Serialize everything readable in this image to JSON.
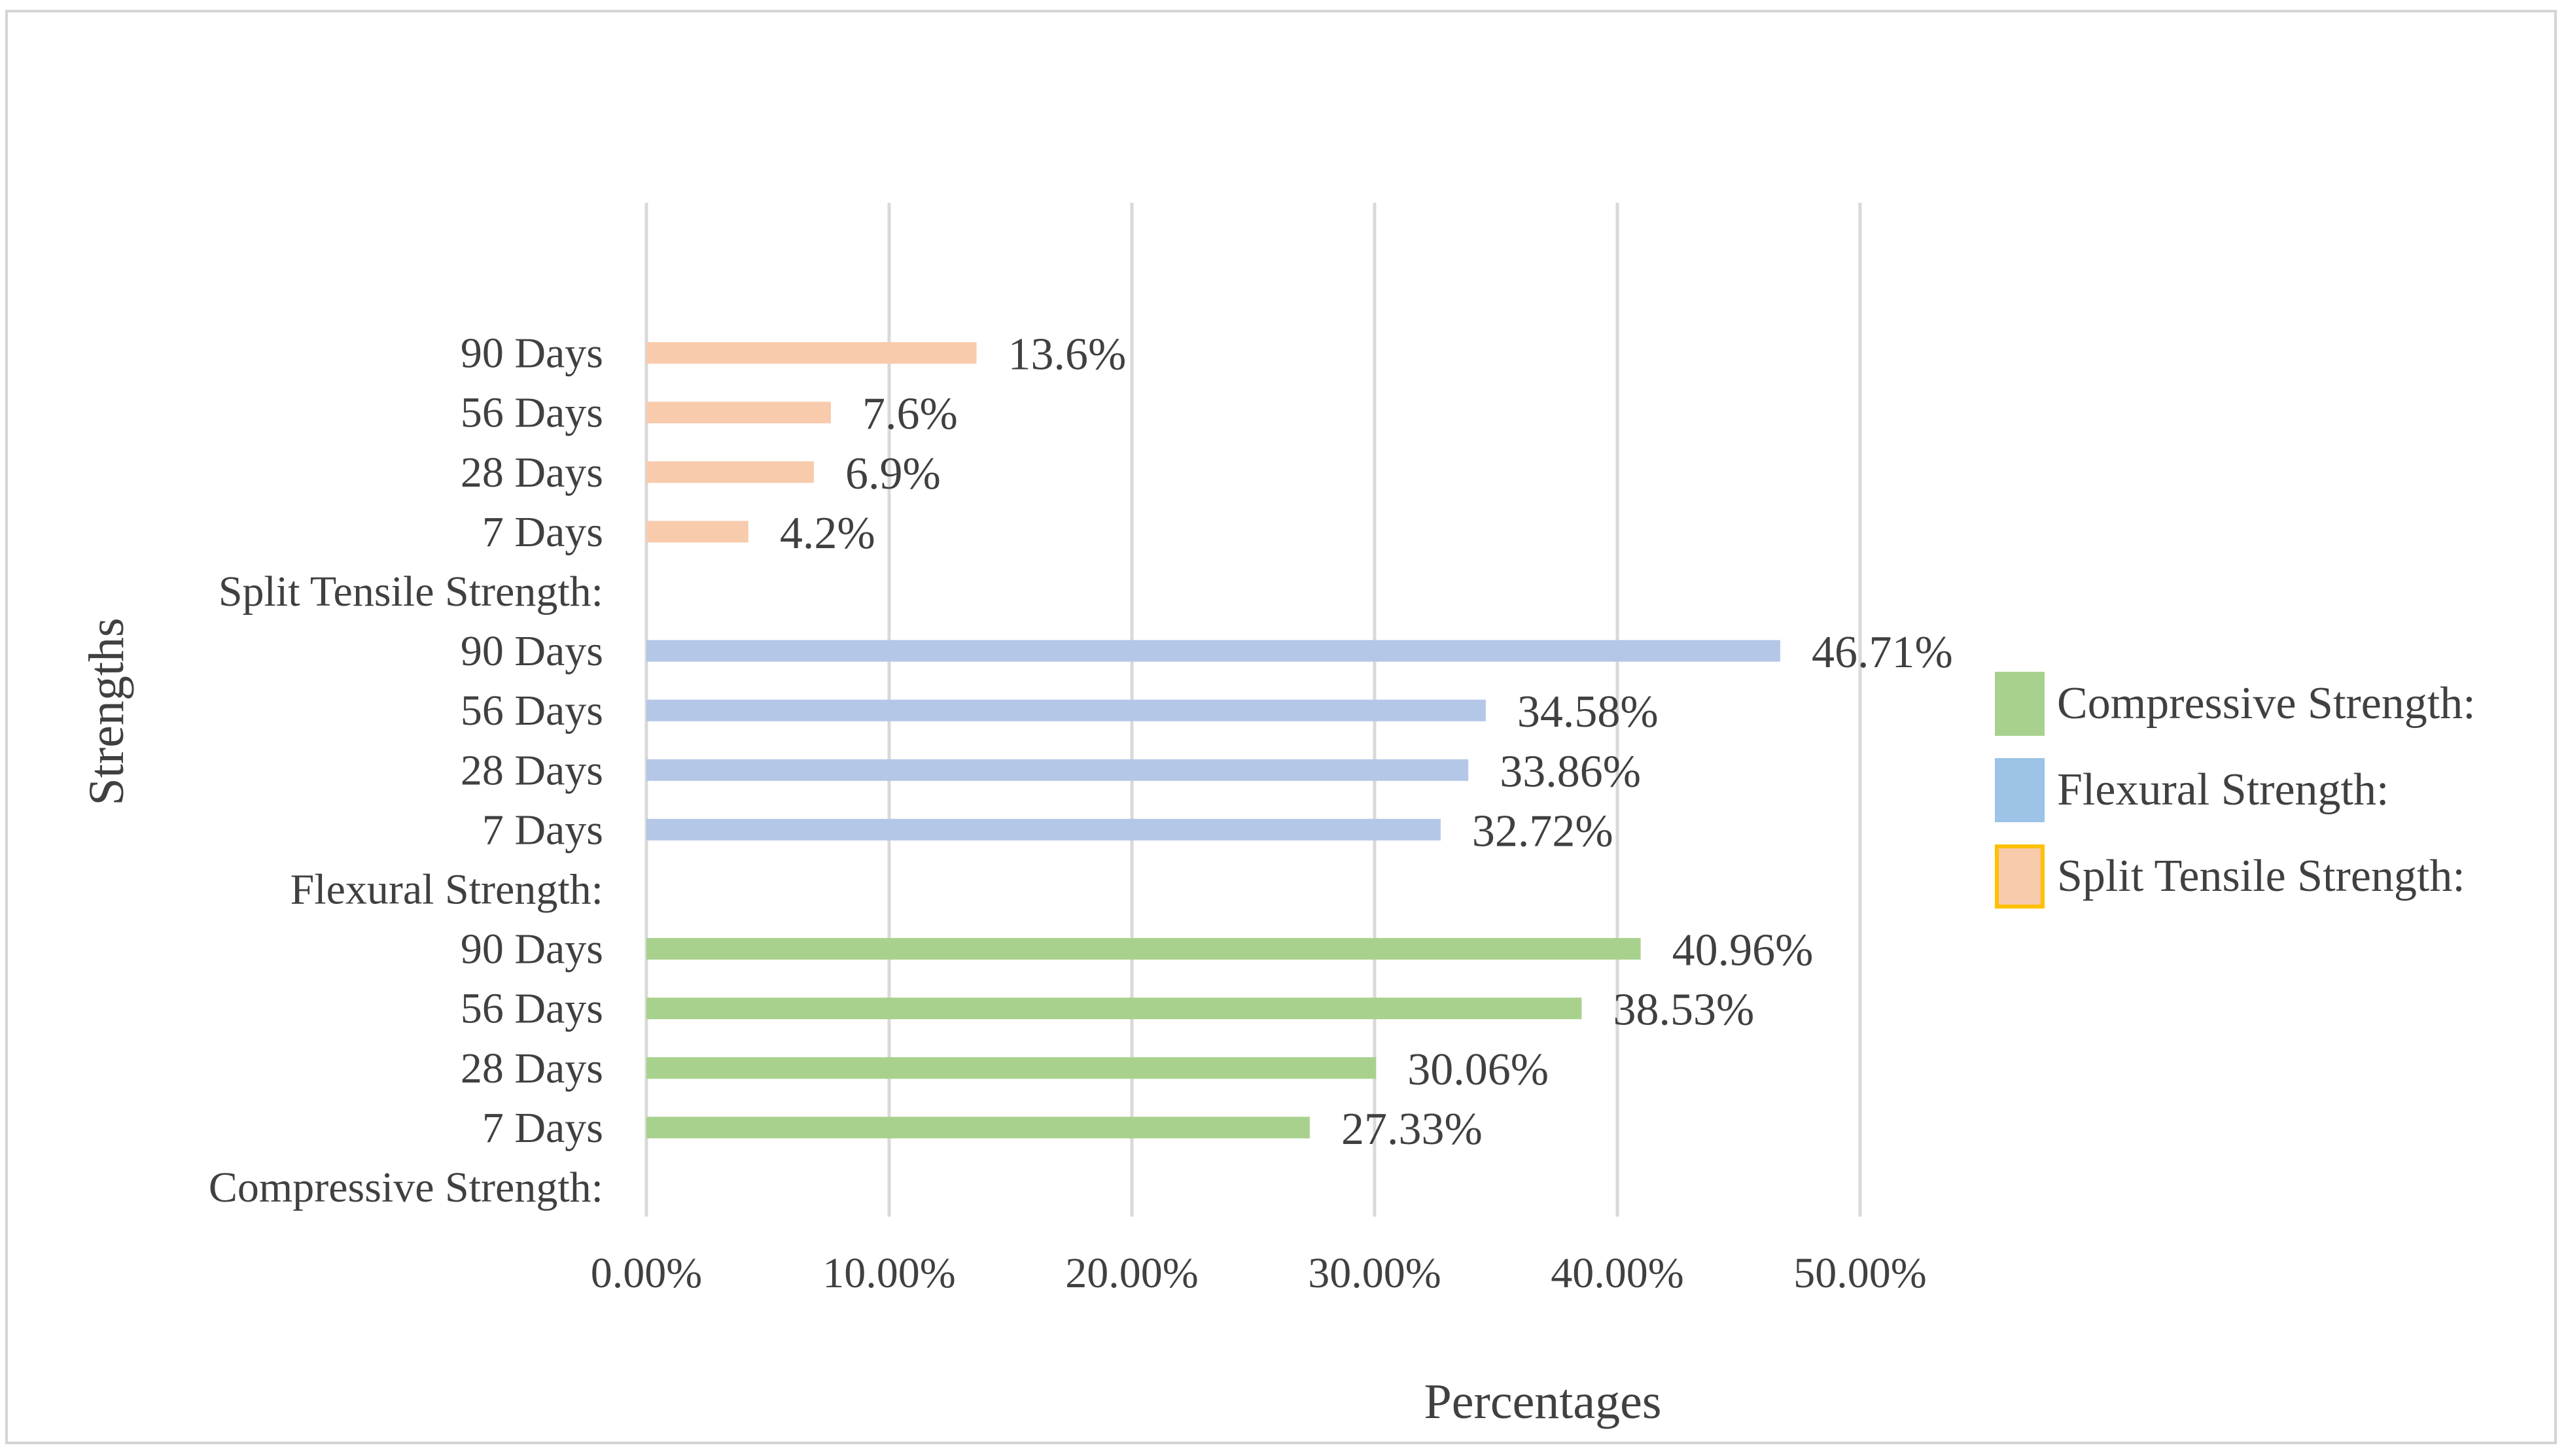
{
  "chart_data": {
    "type": "bar",
    "orientation": "horizontal",
    "xlabel": "Percentages",
    "ylabel": "Strengths",
    "xlim": [
      0,
      50
    ],
    "x_ticks": [
      "0.00%",
      "10.00%",
      "20.00%",
      "30.00%",
      "40.00%",
      "50.00%"
    ],
    "grid": true,
    "legend_position": "right",
    "categories": [
      "Compressive Strength:",
      "7 Days",
      "28 Days",
      "56 Days",
      "90 Days",
      "Flexural Strength:",
      "7 Days",
      "28 Days",
      "56 Days",
      "90 Days",
      "Split Tensile Strength:",
      "7 Days",
      "28 Days",
      "56 Days",
      "90 Days"
    ],
    "series": [
      {
        "name": "Compressive Strength:",
        "color": "#a9d18e",
        "values": [
          null,
          27.33,
          30.06,
          38.53,
          40.96,
          null,
          null,
          null,
          null,
          null,
          null,
          null,
          null,
          null,
          null
        ],
        "labels": [
          null,
          "27.33%",
          "30.06%",
          "38.53%",
          "40.96%",
          null,
          null,
          null,
          null,
          null,
          null,
          null,
          null,
          null,
          null
        ]
      },
      {
        "name": "Flexural Strength:",
        "color": "#b4c7e7",
        "legend_color": "#9dc3e6",
        "values": [
          null,
          null,
          null,
          null,
          null,
          null,
          32.72,
          33.86,
          34.58,
          46.71,
          null,
          null,
          null,
          null,
          null
        ],
        "labels": [
          null,
          null,
          null,
          null,
          null,
          null,
          "32.72%",
          "33.86%",
          "34.58%",
          "46.71%",
          null,
          null,
          null,
          null,
          null
        ]
      },
      {
        "name": "Split Tensile Strength:",
        "color": "#f8cbad",
        "legend_border": "#ffc000",
        "values": [
          null,
          null,
          null,
          null,
          null,
          null,
          null,
          null,
          null,
          null,
          null,
          4.2,
          6.9,
          7.6,
          13.6
        ],
        "labels": [
          null,
          null,
          null,
          null,
          null,
          null,
          null,
          null,
          null,
          null,
          null,
          "4.2%",
          "6.9%",
          "7.6%",
          "13.6%"
        ]
      }
    ]
  }
}
